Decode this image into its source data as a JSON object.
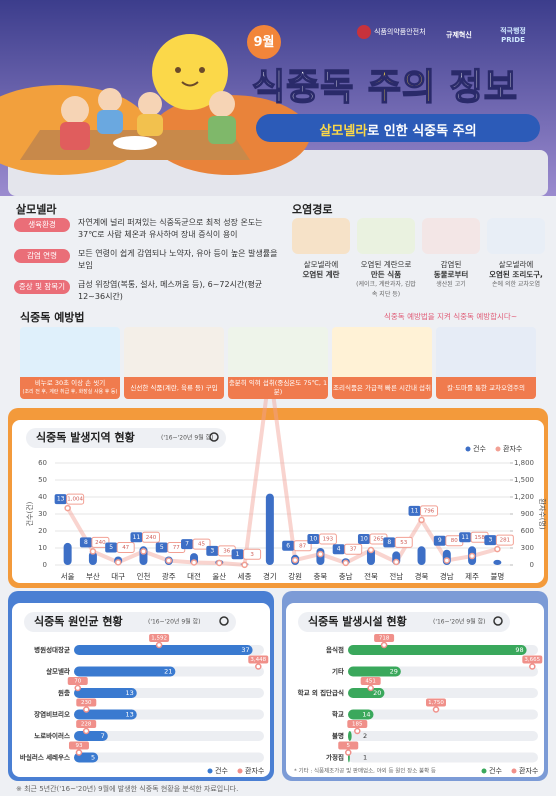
{
  "header": {
    "month": "9월",
    "title_parts": [
      "식중독",
      "주의",
      "정보"
    ],
    "subtitle_parts": [
      "살모넬라",
      "로 인한 식중독 주의"
    ],
    "logos": [
      "식품의약품안전처",
      "규제혁신",
      "적극행정 PRIDE"
    ]
  },
  "salmonella": {
    "title": "살모넬라",
    "rows": [
      [
        "생육환경",
        "자연계에 널리 퍼져있는 식중독균으로 최적 성장 온도는 37℃로 사람 체온과 유사하여 장내 증식이 용이"
      ],
      [
        "감염 연령",
        "모든 연령이 쉽게 감염되나 노약자, 유아 등이 높은 발생률을 보임"
      ],
      [
        "증상 및 잠복기",
        "급성 위장염(복통, 설사, 메스꺼움 등), 6~72시간(평균 12~36시간)"
      ]
    ]
  },
  "routes": {
    "title": "오염경로",
    "items": [
      [
        "살모넬라에",
        "오염된 계란"
      ],
      [
        "오염된 계란으로",
        "만든 식품",
        "(케이크, 계란과자, 김밥 속 지단 등)"
      ],
      [
        "감염된",
        "동물로부터",
        "생산된 고기"
      ],
      [
        "살모넬라에",
        "오염된 조리도구,",
        "손에 의한 교차오염"
      ]
    ]
  },
  "prevention": {
    "title": "식중독 예방법",
    "note": "식중독 예방법을 지켜 식중독 예방합시다~",
    "items": [
      [
        "비누로 30초 이상 손 씻기",
        "(조리 전 후, 계란 취급 후, 화장실 사용 후 등)"
      ],
      [
        "신선한 식품(계란, 육류 등) 구입"
      ],
      [
        "충분히 익혀 섭취(중심온도 75℃, 1분)"
      ],
      [
        "조리식품은 가급적 빠른 시간내 섭취"
      ],
      [
        "칼·도마를 통한 교차오염주의"
      ]
    ]
  },
  "chart_data": [
    {
      "type": "bar",
      "title": "식중독 발생지역 현황",
      "subtitle": "('16~'20년 9월 합)",
      "y_label": "건수(건)",
      "y2_label": "환자수(명)",
      "legend": "top-right",
      "grid": true,
      "categories": [
        "서울",
        "부산",
        "대구",
        "인천",
        "광주",
        "대전",
        "울산",
        "세종",
        "경기",
        "강원",
        "충북",
        "충남",
        "전북",
        "전남",
        "경북",
        "경남",
        "제주",
        "불명"
      ],
      "series": [
        {
          "name": "건수",
          "color": "#3d6fc6",
          "values": [
            13,
            8,
            5,
            11,
            5,
            7,
            3,
            1,
            42,
            6,
            10,
            4,
            10,
            8,
            11,
            9,
            11,
            3
          ]
        },
        {
          "name": "환자수",
          "color": "#f2a094",
          "axis": "y2",
          "type": "line",
          "values": [
            1004,
            240,
            47,
            240,
            77,
            45,
            36,
            3,
            3448,
            87,
            193,
            37,
            265,
            53,
            796,
            80,
            158,
            281
          ],
          "value_labels": [
            "1,004",
            "240",
            "47",
            "240",
            "77",
            "45",
            "36",
            "3",
            "3,448",
            "87",
            "193",
            "37",
            "265",
            "53",
            "796",
            "80",
            "158",
            "281"
          ]
        }
      ],
      "ylim": [
        0,
        60
      ],
      "yticks": [
        0,
        10,
        20,
        30,
        40,
        50,
        60
      ],
      "y2lim": [
        0,
        1800
      ],
      "y2ticks": [
        0,
        300,
        600,
        900,
        {
          "value": 1200,
          "label": "1,200"
        },
        {
          "value": 1500,
          "label": "1,500"
        },
        {
          "value": 1800,
          "label": "1,800"
        }
      ]
    },
    {
      "type": "hbar",
      "title": "식중독 원인균 현황",
      "subtitle": "('16~'20년 9월 합)",
      "legend": "bottom-right",
      "categories": [
        "병원성대장균",
        "살모넬라",
        "원충",
        "장염비브리오",
        "노로바이러스",
        "바실러스 세레우스"
      ],
      "series": [
        {
          "name": "건수",
          "color": "#3a7ad0",
          "values": [
            37,
            21,
            13,
            13,
            7,
            5
          ]
        },
        {
          "name": "환자수",
          "color": "#f0908a",
          "values": [
            1592,
            3448,
            70,
            230,
            228,
            93
          ],
          "value_labels": [
            "1,592",
            "3,448",
            "70",
            "230",
            "228",
            "93"
          ]
        }
      ]
    },
    {
      "type": "hbar",
      "title": "식중독 발생시설 현황",
      "subtitle": "('16~'20년 9월 합)",
      "legend": "bottom-right",
      "note": "* 기타 : 식품제조가공 및 판매업소, 야외 등 원인 장소 불확 등",
      "categories": [
        "음식점",
        "기타",
        "학교 외 집단급식",
        "학교",
        "불명",
        "가정집"
      ],
      "series": [
        {
          "name": "건수",
          "color": "#3aa85c",
          "values": [
            98,
            29,
            20,
            14,
            2,
            1
          ]
        },
        {
          "name": "환자수",
          "color": "#f0908a",
          "values": [
            718,
            3665,
            451,
            1750,
            185,
            5
          ],
          "value_labels": [
            "718",
            "3,665",
            "451",
            "1,750",
            "185",
            "5"
          ]
        }
      ]
    }
  ],
  "footnote": "※ 최근 5년간('16~'20년) 9월에 발생한 식중독 현황을 분석한 자료입니다."
}
